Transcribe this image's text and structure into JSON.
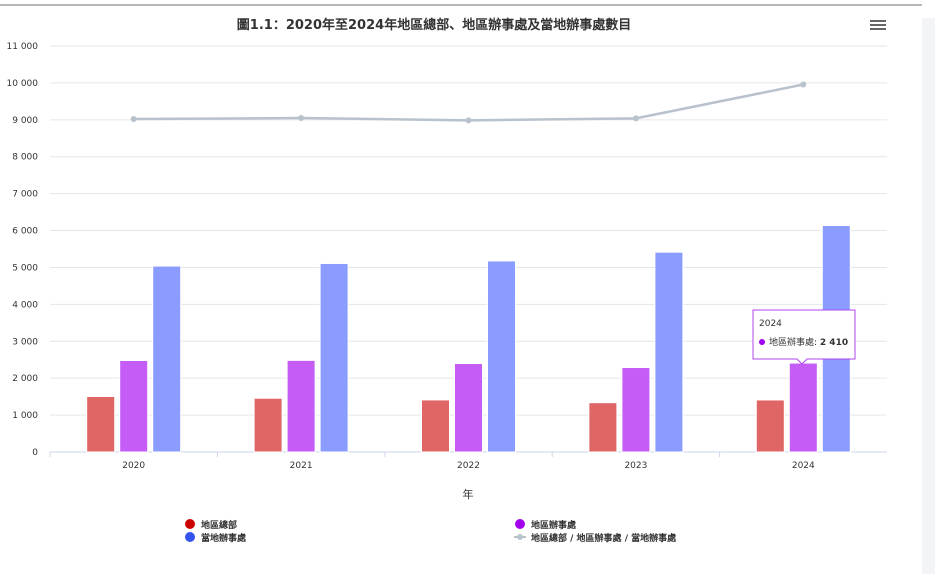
{
  "chart_data": {
    "type": "bar",
    "title": "圖1.1：2020年至2024年地區總部、地區辦事處及當地辦事處數目",
    "xlabel": "年",
    "ylabel": "",
    "ylim": [
      0,
      11000
    ],
    "yticks": [
      "0",
      "1 000",
      "2 000",
      "3 000",
      "4 000",
      "5 000",
      "6 000",
      "7 000",
      "8 000",
      "9 000",
      "10 000",
      "11 000"
    ],
    "categories": [
      "2020",
      "2021",
      "2022",
      "2023",
      "2024"
    ],
    "series": [
      {
        "name": "地區總部",
        "type": "bar",
        "color": "#e06666",
        "legend_color": "#cc0000",
        "values": [
          1504,
          1457,
          1411,
          1336,
          1410
        ]
      },
      {
        "name": "地區辦事處",
        "type": "bar",
        "color": "#c45cf5",
        "legend_color": "#a000ee",
        "values": [
          2479,
          2483,
          2397,
          2289,
          2410
        ]
      },
      {
        "name": "當地辦事處",
        "type": "bar",
        "color": "#8a9cff",
        "legend_color": "#3355ee",
        "values": [
          5038,
          5108,
          5177,
          5414,
          6136
        ]
      },
      {
        "name": "地區總部 / 地區辦事處 / 當地辦事處",
        "type": "line",
        "color": "#b8c2cc",
        "values": [
          9021,
          9048,
          8985,
          9039,
          9956
        ]
      }
    ],
    "grid": true,
    "legend_position": "bottom",
    "tooltip": {
      "title": "2024",
      "label": "地區辦事處",
      "value": "2 410"
    }
  }
}
